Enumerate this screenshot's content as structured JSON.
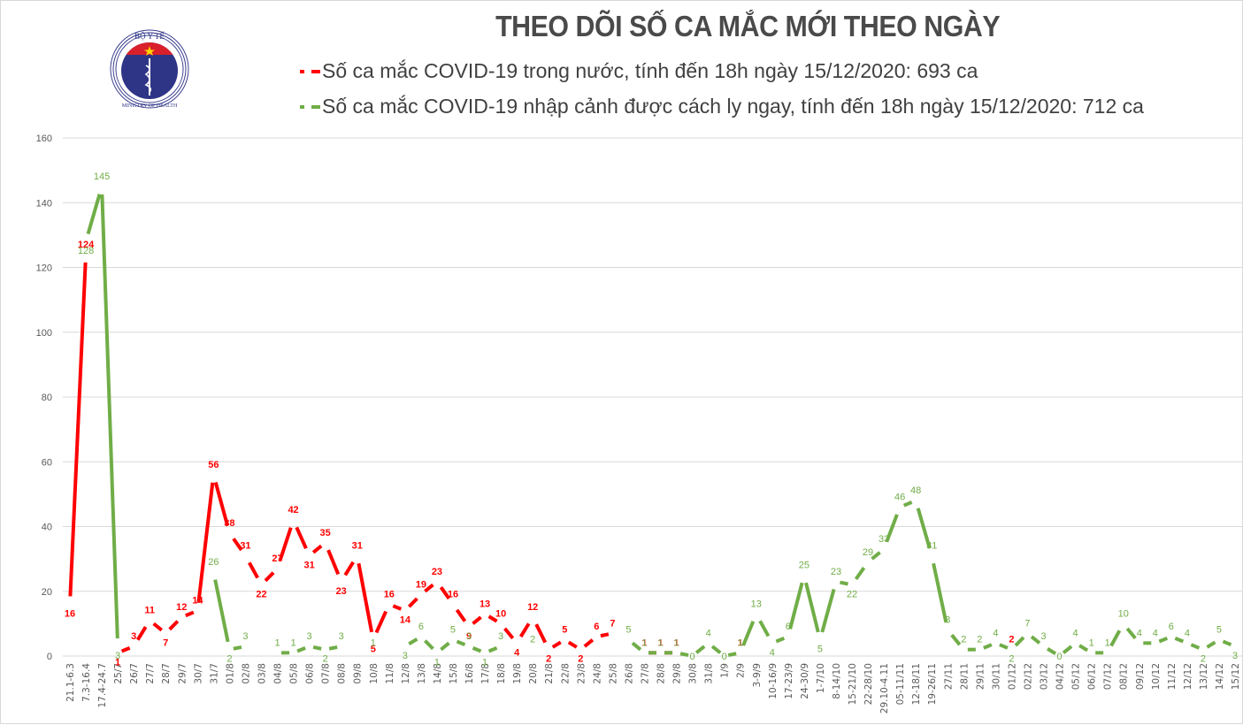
{
  "header": {
    "title": "THEO DÕI SỐ CA MẮC MỚI THEO NGÀY",
    "logo": {
      "top_text": "BỘ Y TẾ",
      "bottom_text": "MINISTRY OF HEALTH",
      "icon": "caduceus-icon"
    }
  },
  "legend": [
    {
      "label": "Số ca mắc COVID-19 trong nước, tính đến 18h ngày 15/12/2020: 693 ca",
      "color": "#ff0000"
    },
    {
      "label": "Số ca mắc COVID-19 nhập cảnh được cách ly ngay, tính đến 18h ngày 15/12/2020: 712 ca",
      "color": "#70ad47"
    }
  ],
  "colors": {
    "domestic": "#ff0000",
    "imported": "#70ad47",
    "grid": "#d9d9d9",
    "axis_text": "#595959"
  },
  "chart_data": {
    "type": "line",
    "title": "THEO DÕI SỐ CA MẮC MỚI THEO NGÀY",
    "xlabel": "",
    "ylabel": "",
    "ylim": [
      0,
      160
    ],
    "yticks": [
      0,
      20,
      40,
      60,
      80,
      100,
      120,
      140,
      160
    ],
    "grid": true,
    "legend_position": "top",
    "categories": [
      "21.1-6.3",
      "7.3-16.4",
      "17.4-24.7",
      "25/7",
      "26/7",
      "27/7",
      "28/7",
      "29/7",
      "30/7",
      "31/7",
      "01/8",
      "02/8",
      "03/8",
      "04/8",
      "05/8",
      "06/8",
      "07/8",
      "08/8",
      "09/8",
      "10/8",
      "11/8",
      "12/8",
      "13/8",
      "14/8",
      "15/8",
      "16/8",
      "17/8",
      "18/8",
      "19/8",
      "20/8",
      "21/8",
      "22/8",
      "23/8",
      "24/8",
      "25/8",
      "26/8",
      "27/8",
      "28/8",
      "29/8",
      "30/8",
      "31/8",
      "1/9",
      "2/9",
      "3-9/9",
      "10-16/9",
      "17-23/9",
      "24-30/9",
      "1-7/10",
      "8-14/10",
      "15-21/10",
      "22-28/10",
      "29.10-4.11",
      "05-11/11",
      "12-18/11",
      "19-26/11",
      "27/11",
      "28/11",
      "29/11",
      "30/11",
      "01/12",
      "02/12",
      "03/12",
      "04/12",
      "05/12",
      "06/12",
      "07/12",
      "08/12",
      "09/12",
      "10/12",
      "11/12",
      "12/12",
      "13/12",
      "14/12",
      "15/12"
    ],
    "series": [
      {
        "name": "Số ca mắc COVID-19 trong nước, tính đến 18h ngày 15/12/2020: 693 ca",
        "color": "#ff0000",
        "values": [
          16,
          124,
          null,
          1,
          3,
          11,
          7,
          12,
          14,
          56,
          38,
          31,
          22,
          27,
          42,
          31,
          35,
          23,
          31,
          5,
          16,
          14,
          19,
          23,
          16,
          9,
          13,
          10,
          4,
          12,
          2,
          5,
          2,
          6,
          7,
          null,
          1,
          1,
          1,
          null,
          null,
          null,
          1,
          null,
          null,
          null,
          null,
          null,
          null,
          null,
          null,
          null,
          null,
          null,
          null,
          null,
          null,
          null,
          null,
          2,
          null,
          null,
          null,
          null,
          null,
          null,
          null,
          null,
          null,
          null,
          null,
          null,
          null,
          null
        ]
      },
      {
        "name": "Số ca mắc COVID-19 nhập cảnh được cách ly ngay, tính đến 18h ngày 15/12/2020: 712 ca",
        "color": "#70ad47",
        "values": [
          null,
          128,
          145,
          3,
          null,
          null,
          null,
          null,
          null,
          26,
          2,
          3,
          null,
          1,
          1,
          3,
          2,
          3,
          null,
          1,
          null,
          3,
          6,
          1,
          5,
          3,
          1,
          3,
          null,
          2,
          null,
          null,
          null,
          null,
          null,
          5,
          1,
          1,
          1,
          0,
          4,
          0,
          1,
          13,
          4,
          6,
          25,
          5,
          23,
          22,
          29,
          33,
          46,
          48,
          31,
          8,
          2,
          2,
          4,
          2,
          7,
          3,
          0,
          4,
          1,
          1,
          10,
          4,
          4,
          6,
          4,
          2,
          5,
          3
        ]
      }
    ]
  }
}
